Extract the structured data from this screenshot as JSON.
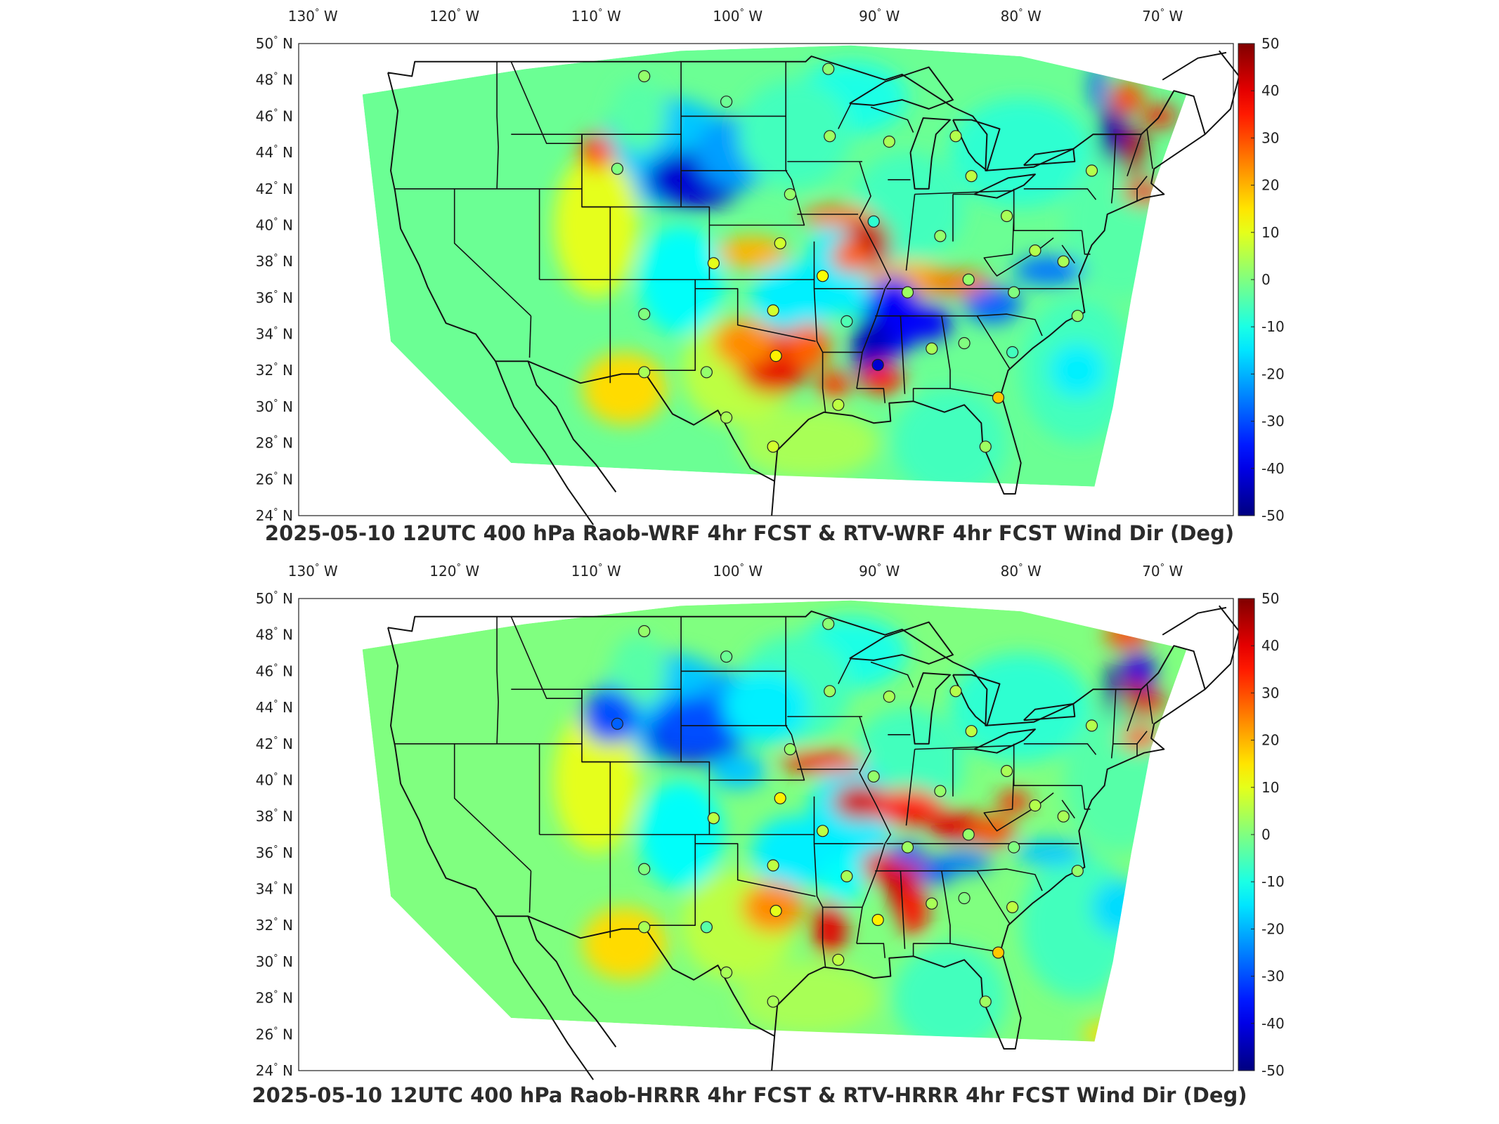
{
  "panels": [
    {
      "title": "2025-05-10 12UTC 400 hPa Raob-WRF 4hr FCST & RTV-WRF 4hr FCST Wind Dir (Deg)",
      "variant": "wrf"
    },
    {
      "title": "2025-05-10 12UTC 400 hPa Raob-HRRR 4hr FCST & RTV-HRRR 4hr FCST Wind Dir (Deg)",
      "variant": "hrrr"
    }
  ],
  "axes": {
    "lon_ticks": [
      {
        "value": -130,
        "num": "130",
        "hemi": "W"
      },
      {
        "value": -120,
        "num": "120",
        "hemi": "W"
      },
      {
        "value": -110,
        "num": "110",
        "hemi": "W"
      },
      {
        "value": -100,
        "num": "100",
        "hemi": "W"
      },
      {
        "value": -90,
        "num": "90",
        "hemi": "W"
      },
      {
        "value": -80,
        "num": "80",
        "hemi": "W"
      },
      {
        "value": -70,
        "num": "70",
        "hemi": "W"
      }
    ],
    "lat_ticks": [
      {
        "value": 50,
        "num": "50",
        "hemi": "N"
      },
      {
        "value": 48,
        "num": "48",
        "hemi": "N"
      },
      {
        "value": 46,
        "num": "46",
        "hemi": "N"
      },
      {
        "value": 44,
        "num": "44",
        "hemi": "N"
      },
      {
        "value": 42,
        "num": "42",
        "hemi": "N"
      },
      {
        "value": 40,
        "num": "40",
        "hemi": "N"
      },
      {
        "value": 38,
        "num": "38",
        "hemi": "N"
      },
      {
        "value": 36,
        "num": "36",
        "hemi": "N"
      },
      {
        "value": 34,
        "num": "34",
        "hemi": "N"
      },
      {
        "value": 32,
        "num": "32",
        "hemi": "N"
      },
      {
        "value": 30,
        "num": "30",
        "hemi": "N"
      },
      {
        "value": 28,
        "num": "28",
        "hemi": "N"
      },
      {
        "value": 26,
        "num": "26",
        "hemi": "N"
      },
      {
        "value": 24,
        "num": "24",
        "hemi": "N"
      }
    ],
    "lon_range": [
      -131,
      -65
    ],
    "lat_range": [
      24,
      50
    ]
  },
  "colorbar": {
    "colormap": "jet",
    "range": [
      -50,
      50
    ],
    "ticks": [
      "50",
      "40",
      "30",
      "20",
      "10",
      "0",
      "-10",
      "-20",
      "-30",
      "-40",
      "-50"
    ],
    "tick_values": [
      50,
      40,
      30,
      20,
      10,
      0,
      -10,
      -20,
      -30,
      -40,
      -50
    ]
  },
  "stations": {
    "wrf": [
      {
        "lon": -106.6,
        "lat": 48.2,
        "v": 2
      },
      {
        "lon": -100.8,
        "lat": 46.8,
        "v": -2
      },
      {
        "lon": -93.6,
        "lat": 48.6,
        "v": 1
      },
      {
        "lon": -93.5,
        "lat": 44.9,
        "v": 3
      },
      {
        "lon": -89.3,
        "lat": 44.6,
        "v": 4
      },
      {
        "lon": -84.6,
        "lat": 44.9,
        "v": 5
      },
      {
        "lon": -108.5,
        "lat": 43.1,
        "v": 0
      },
      {
        "lon": -83.5,
        "lat": 42.7,
        "v": 6
      },
      {
        "lon": -96.3,
        "lat": 41.7,
        "v": 2
      },
      {
        "lon": -90.4,
        "lat": 40.2,
        "v": -8
      },
      {
        "lon": -85.7,
        "lat": 39.4,
        "v": 2
      },
      {
        "lon": -81.0,
        "lat": 40.5,
        "v": 4
      },
      {
        "lon": -79.0,
        "lat": 38.6,
        "v": 5
      },
      {
        "lon": -75.0,
        "lat": 43.0,
        "v": 5
      },
      {
        "lon": -97.0,
        "lat": 39.0,
        "v": 8
      },
      {
        "lon": -101.7,
        "lat": 37.9,
        "v": 10
      },
      {
        "lon": -94.0,
        "lat": 37.2,
        "v": 12
      },
      {
        "lon": -88.0,
        "lat": 36.3,
        "v": 3
      },
      {
        "lon": -83.7,
        "lat": 37.0,
        "v": 2
      },
      {
        "lon": -80.5,
        "lat": 36.3,
        "v": 0
      },
      {
        "lon": -97.5,
        "lat": 35.3,
        "v": 8
      },
      {
        "lon": -106.6,
        "lat": 35.1,
        "v": 0
      },
      {
        "lon": -92.3,
        "lat": 34.7,
        "v": -5
      },
      {
        "lon": -86.3,
        "lat": 33.2,
        "v": 4
      },
      {
        "lon": -84.0,
        "lat": 33.5,
        "v": 0
      },
      {
        "lon": -80.6,
        "lat": 33.0,
        "v": -6
      },
      {
        "lon": -97.3,
        "lat": 32.8,
        "v": 14
      },
      {
        "lon": -102.2,
        "lat": 31.9,
        "v": 2
      },
      {
        "lon": -90.1,
        "lat": 32.3,
        "v": -42
      },
      {
        "lon": -106.6,
        "lat": 31.9,
        "v": 4
      },
      {
        "lon": -92.9,
        "lat": 30.1,
        "v": 6
      },
      {
        "lon": -81.6,
        "lat": 30.5,
        "v": 18
      },
      {
        "lon": -100.8,
        "lat": 29.4,
        "v": 4
      },
      {
        "lon": -97.5,
        "lat": 27.8,
        "v": 8
      },
      {
        "lon": -82.5,
        "lat": 27.8,
        "v": 3
      },
      {
        "lon": -77.0,
        "lat": 38.0,
        "v": 4
      },
      {
        "lon": -76.0,
        "lat": 35.0,
        "v": 2
      }
    ],
    "hrrr": [
      {
        "lon": -106.6,
        "lat": 48.2,
        "v": 2
      },
      {
        "lon": -100.8,
        "lat": 46.8,
        "v": -2
      },
      {
        "lon": -93.6,
        "lat": 48.6,
        "v": 1
      },
      {
        "lon": -93.5,
        "lat": 44.9,
        "v": 3
      },
      {
        "lon": -89.3,
        "lat": 44.6,
        "v": 4
      },
      {
        "lon": -84.6,
        "lat": 44.9,
        "v": 5
      },
      {
        "lon": -108.5,
        "lat": 43.1,
        "v": -28
      },
      {
        "lon": -83.5,
        "lat": 42.7,
        "v": 6
      },
      {
        "lon": -96.3,
        "lat": 41.7,
        "v": 2
      },
      {
        "lon": -90.4,
        "lat": 40.2,
        "v": 2
      },
      {
        "lon": -85.7,
        "lat": 39.4,
        "v": 2
      },
      {
        "lon": -81.0,
        "lat": 40.5,
        "v": 4
      },
      {
        "lon": -79.0,
        "lat": 38.6,
        "v": 5
      },
      {
        "lon": -75.0,
        "lat": 43.0,
        "v": 5
      },
      {
        "lon": -97.0,
        "lat": 39.0,
        "v": 14
      },
      {
        "lon": -101.7,
        "lat": 37.9,
        "v": 6
      },
      {
        "lon": -94.0,
        "lat": 37.2,
        "v": 6
      },
      {
        "lon": -88.0,
        "lat": 36.3,
        "v": 3
      },
      {
        "lon": -83.7,
        "lat": 37.0,
        "v": 2
      },
      {
        "lon": -80.5,
        "lat": 36.3,
        "v": 0
      },
      {
        "lon": -97.5,
        "lat": 35.3,
        "v": 6
      },
      {
        "lon": -106.6,
        "lat": 35.1,
        "v": 0
      },
      {
        "lon": -92.3,
        "lat": 34.7,
        "v": 4
      },
      {
        "lon": -86.3,
        "lat": 33.2,
        "v": 4
      },
      {
        "lon": -84.0,
        "lat": 33.5,
        "v": 0
      },
      {
        "lon": -80.6,
        "lat": 33.0,
        "v": 6
      },
      {
        "lon": -97.3,
        "lat": 32.8,
        "v": 10
      },
      {
        "lon": -102.2,
        "lat": 31.9,
        "v": -4
      },
      {
        "lon": -90.1,
        "lat": 32.3,
        "v": 14
      },
      {
        "lon": -106.6,
        "lat": 31.9,
        "v": 4
      },
      {
        "lon": -92.9,
        "lat": 30.1,
        "v": 6
      },
      {
        "lon": -81.6,
        "lat": 30.5,
        "v": 18
      },
      {
        "lon": -100.8,
        "lat": 29.4,
        "v": 4
      },
      {
        "lon": -97.5,
        "lat": 27.8,
        "v": 4
      },
      {
        "lon": -82.5,
        "lat": 27.8,
        "v": 3
      },
      {
        "lon": -77.0,
        "lat": 38.0,
        "v": 4
      },
      {
        "lon": -76.0,
        "lat": 35.0,
        "v": 2
      }
    ]
  }
}
